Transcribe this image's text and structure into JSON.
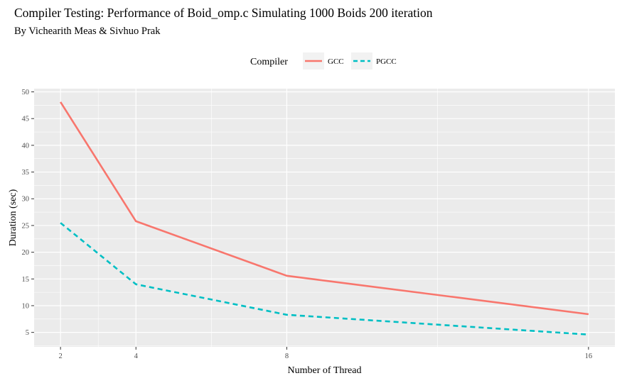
{
  "chart_data": {
    "type": "line",
    "title": "Compiler Testing: Performance of Boid_omp.c Simulating 1000 Boids 200 iteration",
    "subtitle": "By Vichearith Meas & Sivhuo Prak",
    "xlabel": "Number of Thread",
    "ylabel": "Duration (sec)",
    "xlim": [
      1.3,
      16.7
    ],
    "ylim": [
      2.3,
      50.6
    ],
    "x_ticks": [
      2,
      4,
      8,
      16
    ],
    "y_ticks": [
      5,
      10,
      15,
      20,
      25,
      30,
      35,
      40,
      45,
      50
    ],
    "x_minor": [
      3,
      6,
      12
    ],
    "legend": {
      "title": "Compiler",
      "position": "top"
    },
    "grid": true,
    "series": [
      {
        "name": "GCC",
        "color": "#F8766D",
        "dash": "solid",
        "x": [
          2,
          4,
          8,
          16
        ],
        "y": [
          48.1,
          25.8,
          15.6,
          8.4
        ]
      },
      {
        "name": "PGCC",
        "color": "#00BFC4",
        "dash": "dashed",
        "x": [
          2,
          4,
          8,
          16
        ],
        "y": [
          25.5,
          14.0,
          8.3,
          4.6
        ]
      }
    ]
  }
}
